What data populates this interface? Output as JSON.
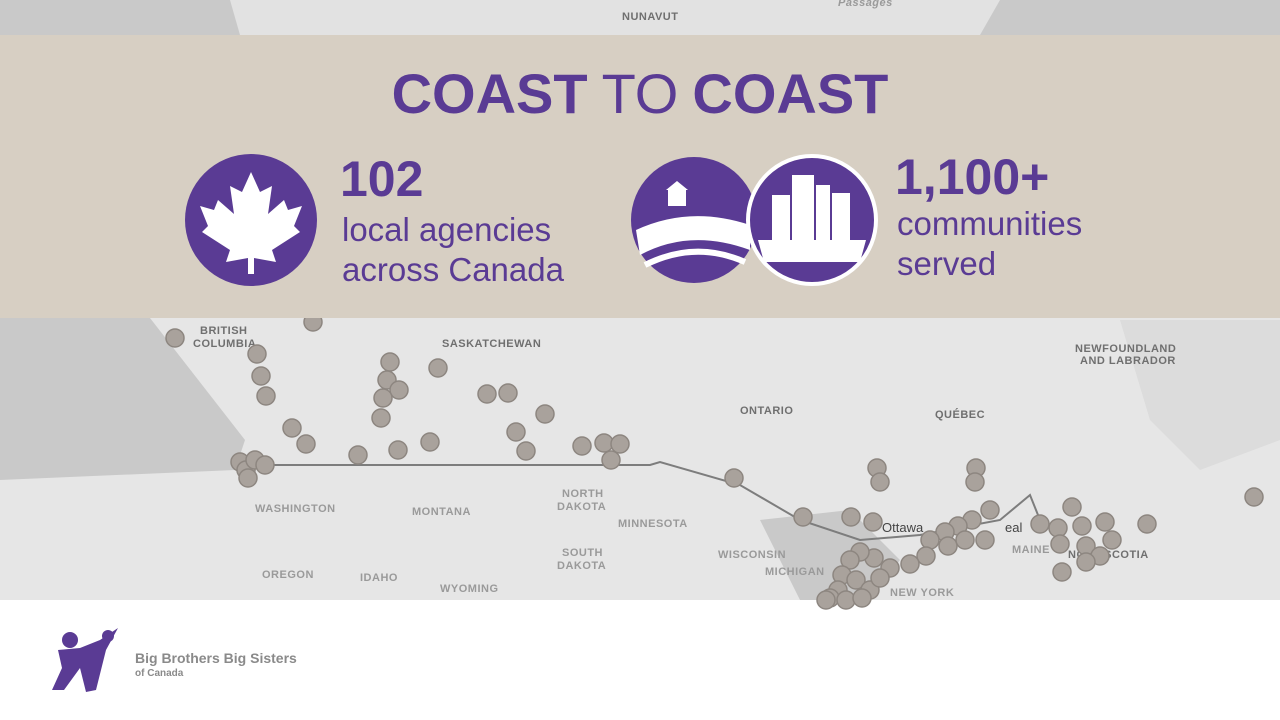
{
  "banner": {
    "title": [
      "COAST",
      "TO",
      "COAST"
    ],
    "stats": [
      {
        "number": "102",
        "lines": [
          "local agencies",
          "across Canada"
        ]
      },
      {
        "number": "1,100+",
        "lines": [
          "communities",
          "served"
        ]
      }
    ]
  },
  "map": {
    "labels": [
      "NUNAVUT",
      "Passages",
      "BRITISH",
      "COLUMBIA",
      "SASKATCHEWAN",
      "ONTARIO",
      "QUÉBEC",
      "NEWFOUNDLAND",
      "AND LABRADOR",
      "WASHINGTON",
      "MONTANA",
      "NORTH",
      "DAKOTA",
      "MINNESOTA",
      "SOUTH",
      "DAKOTA",
      "WISCONSIN",
      "OREGON",
      "IDAHO",
      "WYOMING",
      "MICHIGAN",
      "NEW YORK",
      "Ottawa",
      "eal",
      "MAINE",
      "NOVA SCOTIA"
    ]
  },
  "logo": {
    "name": "Big Brothers Big Sisters",
    "sub": "of Canada"
  }
}
